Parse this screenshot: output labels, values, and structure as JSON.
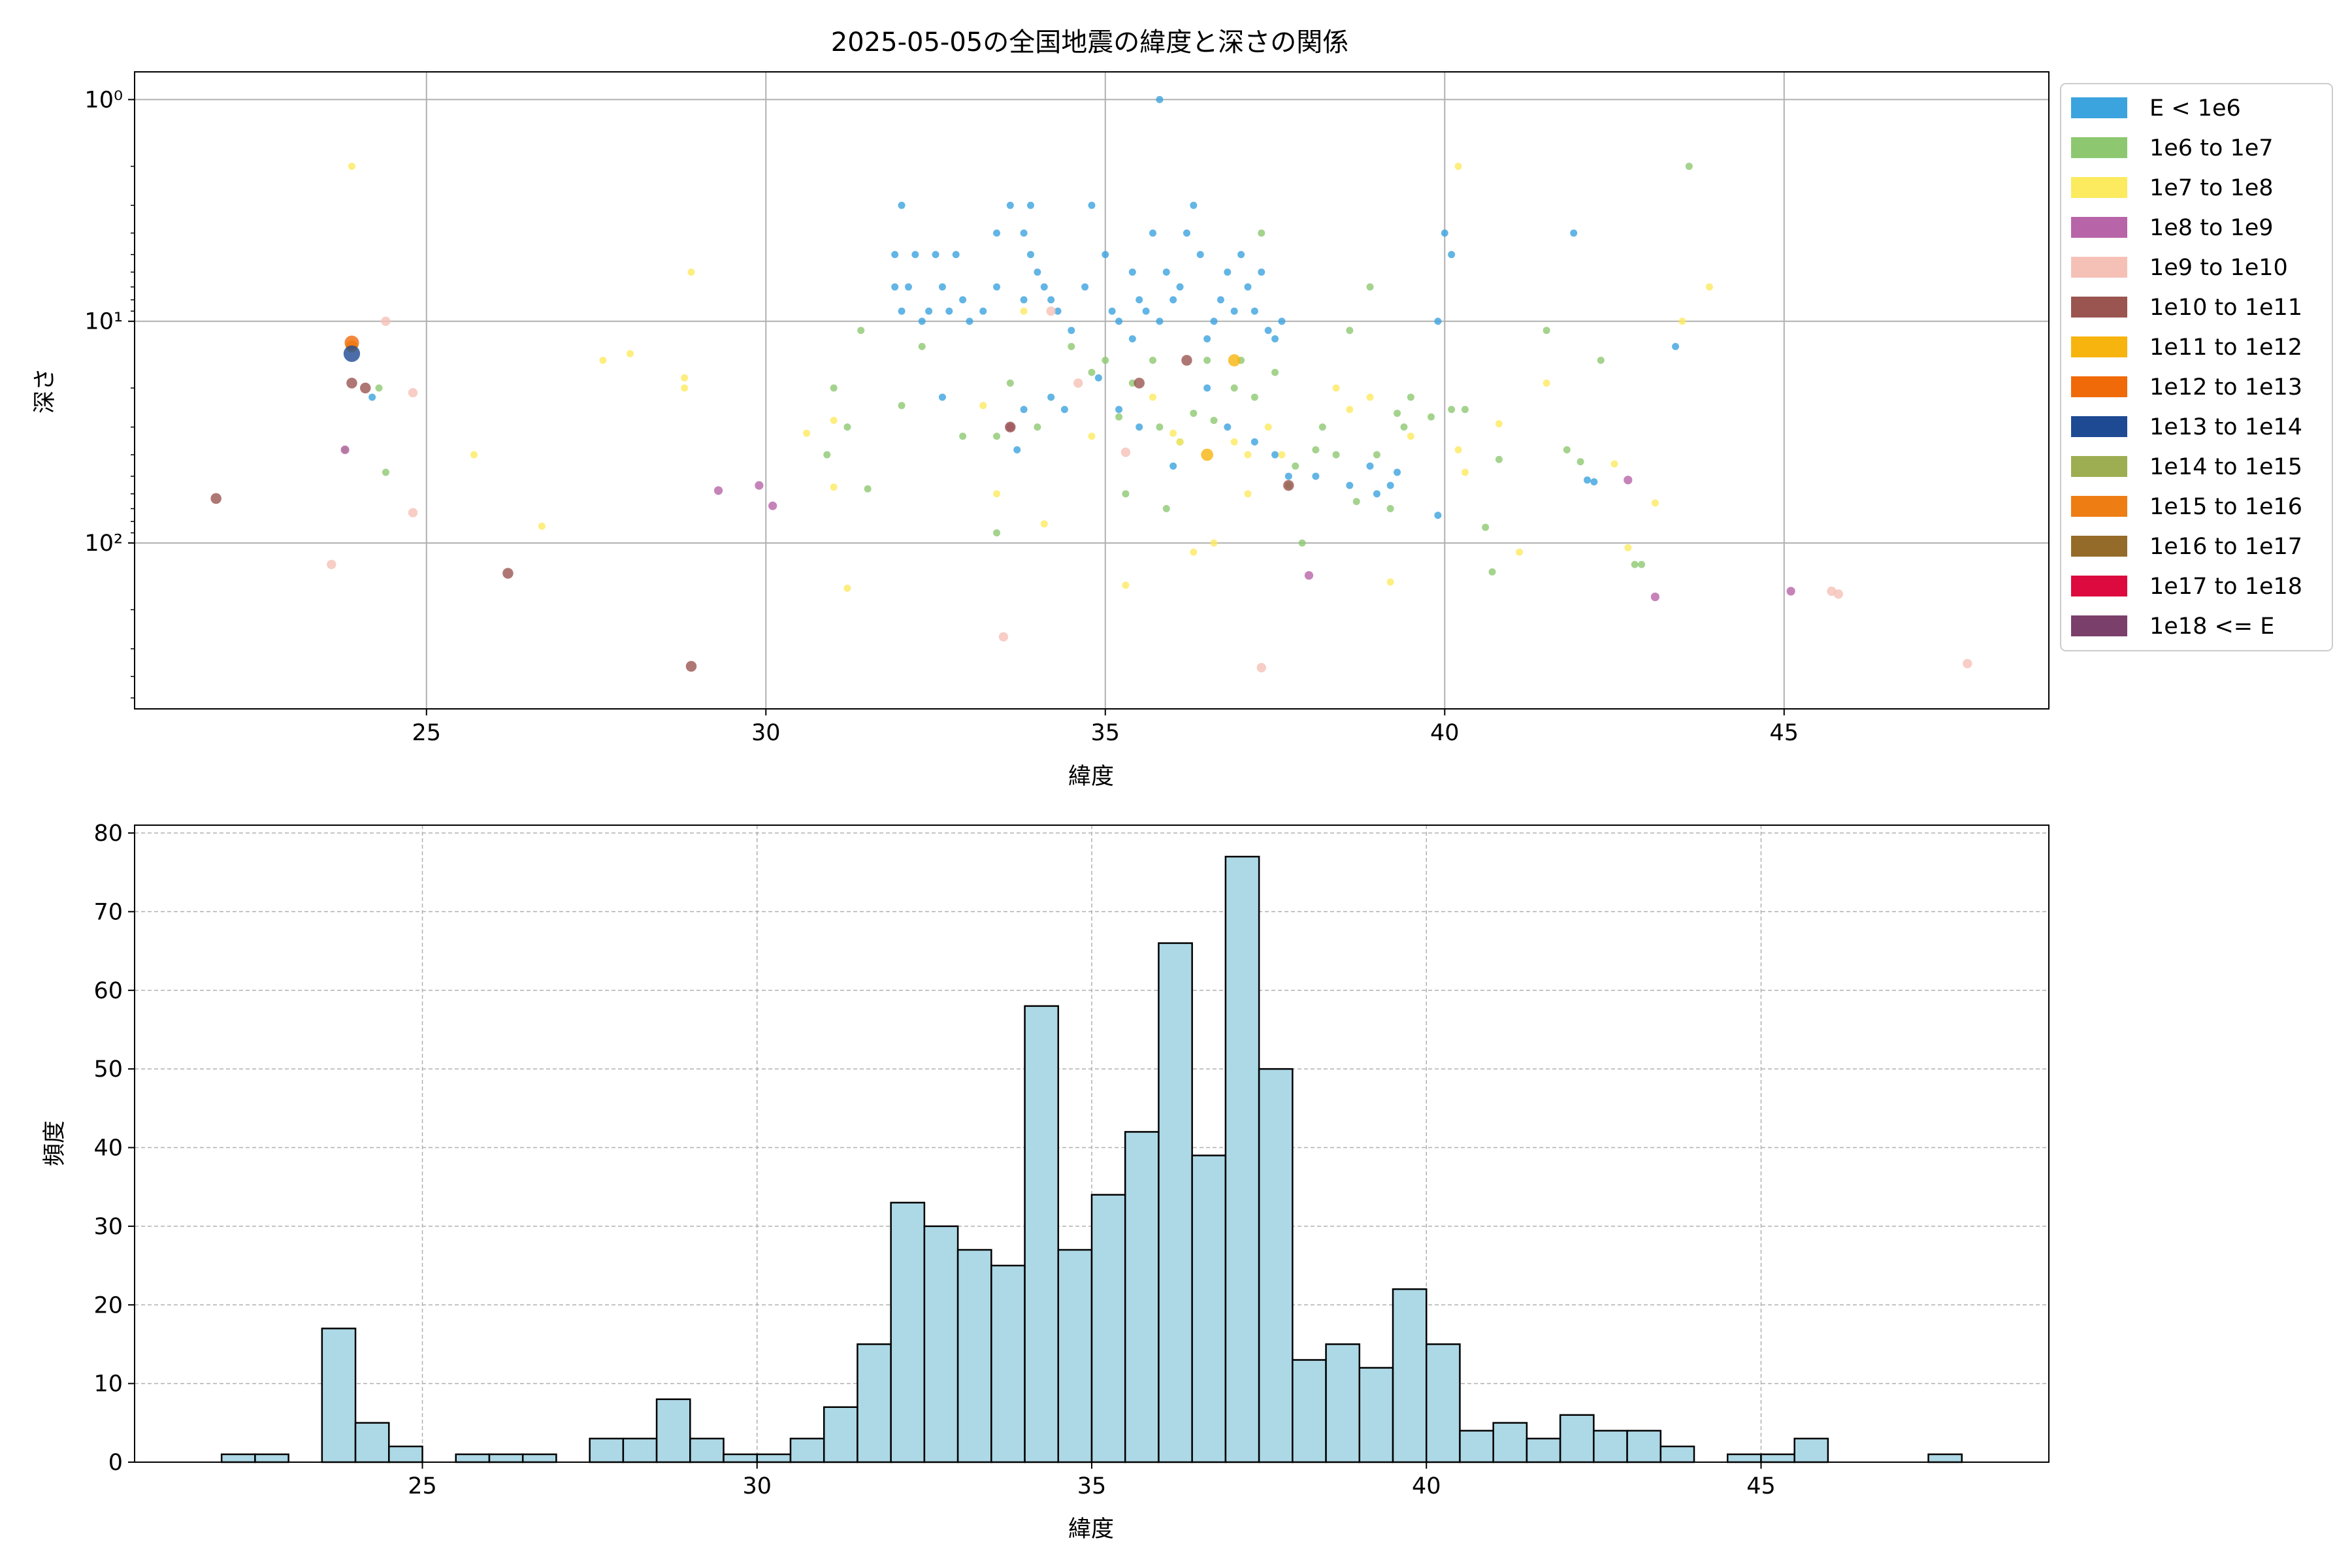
{
  "chart_data": [
    {
      "type": "scatter",
      "title": "2025-05-05の全国地震の緯度と深さの関係",
      "xlabel": "緯度",
      "ylabel": "深さ",
      "xlim": [
        20.7,
        48.9
      ],
      "ylim": [
        560,
        0.75
      ],
      "y_scale": "log",
      "y_inverted": true,
      "grid": true,
      "legend_placement": "outside-top-right",
      "x_ticks": [
        25,
        30,
        35,
        40,
        45
      ],
      "y_ticks": [
        {
          "value": 1,
          "label": "10⁰"
        },
        {
          "value": 10,
          "label": "10¹"
        },
        {
          "value": 100,
          "label": "10²"
        }
      ],
      "series": [
        {
          "name": "E < 1e6",
          "color": "#3ba3de",
          "size": 1.0,
          "points": [
            [
              24.2,
              22
            ],
            [
              31.9,
              5
            ],
            [
              31.9,
              7
            ],
            [
              32.0,
              3
            ],
            [
              32.0,
              9
            ],
            [
              32.1,
              7
            ],
            [
              32.2,
              5
            ],
            [
              32.3,
              10
            ],
            [
              32.4,
              9
            ],
            [
              32.5,
              5
            ],
            [
              32.6,
              7
            ],
            [
              32.7,
              9
            ],
            [
              32.8,
              5
            ],
            [
              32.9,
              8
            ],
            [
              33.0,
              10
            ],
            [
              33.2,
              9
            ],
            [
              33.4,
              4
            ],
            [
              33.4,
              7
            ],
            [
              33.6,
              3
            ],
            [
              33.8,
              4
            ],
            [
              33.8,
              8
            ],
            [
              33.9,
              5
            ],
            [
              33.9,
              3
            ],
            [
              34.0,
              6
            ],
            [
              34.1,
              7
            ],
            [
              34.2,
              8
            ],
            [
              34.3,
              9
            ],
            [
              34.5,
              11
            ],
            [
              34.7,
              7
            ],
            [
              34.8,
              3
            ],
            [
              35.0,
              5
            ],
            [
              35.1,
              9
            ],
            [
              35.2,
              10
            ],
            [
              35.4,
              6
            ],
            [
              35.4,
              12
            ],
            [
              35.5,
              8
            ],
            [
              35.6,
              9
            ],
            [
              35.7,
              4
            ],
            [
              35.8,
              10
            ],
            [
              35.9,
              6
            ],
            [
              36.0,
              8
            ],
            [
              36.1,
              7
            ],
            [
              36.2,
              4
            ],
            [
              36.3,
              3
            ],
            [
              36.4,
              5
            ],
            [
              36.5,
              12
            ],
            [
              36.6,
              10
            ],
            [
              36.7,
              8
            ],
            [
              36.8,
              6
            ],
            [
              36.9,
              9
            ],
            [
              37.0,
              5
            ],
            [
              37.1,
              7
            ],
            [
              37.2,
              9
            ],
            [
              37.3,
              6
            ],
            [
              37.4,
              11
            ],
            [
              37.5,
              12
            ],
            [
              37.6,
              10
            ],
            [
              37.5,
              40
            ],
            [
              37.7,
              50
            ],
            [
              38.1,
              50
            ],
            [
              38.6,
              55
            ],
            [
              38.9,
              45
            ],
            [
              39.0,
              60
            ],
            [
              39.2,
              55
            ],
            [
              39.3,
              48
            ],
            [
              39.9,
              10
            ],
            [
              40.0,
              4
            ],
            [
              40.1,
              5
            ],
            [
              41.9,
              4
            ],
            [
              42.1,
              52
            ],
            [
              42.2,
              53
            ],
            [
              43.4,
              13
            ],
            [
              35.8,
              1
            ],
            [
              36.0,
              45
            ],
            [
              36.8,
              30
            ],
            [
              37.2,
              35
            ],
            [
              33.7,
              38
            ],
            [
              34.2,
              22
            ],
            [
              35.5,
              30
            ],
            [
              39.9,
              75
            ],
            [
              34.4,
              25
            ],
            [
              33.8,
              25
            ],
            [
              32.6,
              22
            ],
            [
              34.9,
              18
            ],
            [
              36.5,
              20
            ],
            [
              35.2,
              25
            ]
          ]
        },
        {
          "name": "1e6 to 1e7",
          "color": "#8dc871",
          "size": 1.0,
          "points": [
            [
              23.8,
              38
            ],
            [
              24.3,
              20
            ],
            [
              24.4,
              48
            ],
            [
              30.9,
              40
            ],
            [
              31.0,
              20
            ],
            [
              31.2,
              30
            ],
            [
              31.4,
              11
            ],
            [
              31.5,
              57
            ],
            [
              32.0,
              24
            ],
            [
              32.3,
              13
            ],
            [
              32.9,
              33
            ],
            [
              33.4,
              33
            ],
            [
              33.4,
              90
            ],
            [
              33.6,
              19
            ],
            [
              34.0,
              30
            ],
            [
              34.5,
              13
            ],
            [
              34.8,
              17
            ],
            [
              35.0,
              15
            ],
            [
              35.2,
              27
            ],
            [
              35.3,
              60
            ],
            [
              35.4,
              19
            ],
            [
              35.7,
              15
            ],
            [
              35.8,
              30
            ],
            [
              35.9,
              70
            ],
            [
              36.1,
              35
            ],
            [
              36.3,
              26
            ],
            [
              36.5,
              15
            ],
            [
              36.6,
              28
            ],
            [
              36.9,
              20
            ],
            [
              37.0,
              15
            ],
            [
              37.2,
              22
            ],
            [
              37.3,
              4
            ],
            [
              37.5,
              17
            ],
            [
              37.7,
              55
            ],
            [
              37.8,
              45
            ],
            [
              37.9,
              100
            ],
            [
              38.1,
              38
            ],
            [
              38.2,
              30
            ],
            [
              38.4,
              40
            ],
            [
              38.6,
              11
            ],
            [
              38.7,
              65
            ],
            [
              38.9,
              7
            ],
            [
              39.0,
              40
            ],
            [
              39.2,
              70
            ],
            [
              39.3,
              26
            ],
            [
              39.4,
              30
            ],
            [
              39.5,
              22
            ],
            [
              39.8,
              27
            ],
            [
              40.1,
              25
            ],
            [
              40.3,
              25
            ],
            [
              40.6,
              85
            ],
            [
              40.7,
              135
            ],
            [
              40.8,
              42
            ],
            [
              41.5,
              11
            ],
            [
              41.8,
              38
            ],
            [
              42.0,
              43
            ],
            [
              42.3,
              15
            ],
            [
              42.8,
              125
            ],
            [
              42.9,
              125
            ],
            [
              43.6,
              2
            ]
          ]
        },
        {
          "name": "1e7 to 1e8",
          "color": "#fcea5f",
          "size": 1.0,
          "points": [
            [
              23.9,
              2
            ],
            [
              25.7,
              40
            ],
            [
              26.7,
              84
            ],
            [
              27.6,
              15
            ],
            [
              28.0,
              14
            ],
            [
              28.8,
              20
            ],
            [
              28.8,
              18
            ],
            [
              28.9,
              6
            ],
            [
              30.6,
              32
            ],
            [
              31.0,
              56
            ],
            [
              31.0,
              28
            ],
            [
              31.2,
              160
            ],
            [
              33.2,
              24
            ],
            [
              33.4,
              60
            ],
            [
              33.8,
              9
            ],
            [
              34.1,
              82
            ],
            [
              34.8,
              33
            ],
            [
              35.3,
              155
            ],
            [
              35.7,
              22
            ],
            [
              36.1,
              35
            ],
            [
              36.3,
              110
            ],
            [
              36.6,
              100
            ],
            [
              36.9,
              35
            ],
            [
              37.1,
              60
            ],
            [
              37.4,
              30
            ],
            [
              37.6,
              40
            ],
            [
              38.4,
              20
            ],
            [
              38.6,
              25
            ],
            [
              38.9,
              22
            ],
            [
              39.2,
              150
            ],
            [
              39.5,
              33
            ],
            [
              40.2,
              2
            ],
            [
              40.2,
              38
            ],
            [
              40.3,
              48
            ],
            [
              40.8,
              29
            ],
            [
              41.1,
              110
            ],
            [
              41.5,
              19
            ],
            [
              42.5,
              44
            ],
            [
              42.7,
              105
            ],
            [
              43.1,
              66
            ],
            [
              43.5,
              10
            ],
            [
              43.9,
              7
            ],
            [
              37.1,
              40
            ],
            [
              36.0,
              32
            ]
          ]
        },
        {
          "name": "1e8 to 1e9",
          "color": "#b864a8",
          "size": 1.2,
          "points": [
            [
              23.8,
              38
            ],
            [
              29.3,
              58
            ],
            [
              29.9,
              55
            ],
            [
              30.1,
              68
            ],
            [
              33.6,
              30
            ],
            [
              38.0,
              140
            ],
            [
              42.7,
              52
            ],
            [
              43.1,
              175
            ],
            [
              45.1,
              165
            ]
          ]
        },
        {
          "name": "1e9 to 1e10",
          "color": "#f5c1b6",
          "size": 1.3,
          "points": [
            [
              23.6,
              125
            ],
            [
              24.4,
              10
            ],
            [
              24.8,
              21
            ],
            [
              24.8,
              73
            ],
            [
              33.5,
              265
            ],
            [
              34.2,
              9
            ],
            [
              34.6,
              19
            ],
            [
              35.3,
              39
            ],
            [
              37.3,
              365
            ],
            [
              45.7,
              165
            ],
            [
              45.8,
              170
            ],
            [
              47.7,
              350
            ]
          ]
        },
        {
          "name": "1e10 to 1e11",
          "color": "#9a5550",
          "size": 1.5,
          "points": [
            [
              21.9,
              63
            ],
            [
              23.9,
              19
            ],
            [
              24.1,
              20
            ],
            [
              26.2,
              137
            ],
            [
              28.9,
              360
            ],
            [
              37.7,
              55
            ],
            [
              35.5,
              19
            ],
            [
              33.6,
              30
            ],
            [
              36.2,
              15
            ]
          ]
        },
        {
          "name": "1e11 to 1e12",
          "color": "#f7b40e",
          "size": 1.7,
          "points": [
            [
              23.9,
              13
            ],
            [
              36.9,
              15
            ],
            [
              36.5,
              40
            ]
          ]
        },
        {
          "name": "1e12 to 1e13",
          "color": "#f06a0a",
          "size": 2.0,
          "points": [
            [
              23.9,
              12.5
            ]
          ]
        },
        {
          "name": "1e13 to 1e14",
          "color": "#1e4a93",
          "size": 2.3,
          "points": [
            [
              23.9,
              14
            ]
          ]
        },
        {
          "name": "1e14 to 1e15",
          "color": "#9dad51",
          "size": 2.5,
          "points": []
        },
        {
          "name": "1e15 to 1e16",
          "color": "#ee7d13",
          "size": 2.7,
          "points": []
        },
        {
          "name": "1e16 to 1e17",
          "color": "#956b29",
          "size": 2.9,
          "points": []
        },
        {
          "name": "1e17 to 1e18",
          "color": "#dc0a3e",
          "size": 3.1,
          "points": []
        },
        {
          "name": "1e18 <= E",
          "color": "#7b3f6b",
          "size": 3.3,
          "points": []
        }
      ]
    },
    {
      "type": "bar",
      "title": "",
      "xlabel": "緯度",
      "ylabel": "頻度",
      "xlim": [
        20.7,
        49.3
      ],
      "ylim": [
        0,
        81
      ],
      "grid": true,
      "color": "#add8e6",
      "x_ticks": [
        25,
        30,
        35,
        40,
        45
      ],
      "y_ticks": [
        0,
        10,
        20,
        30,
        40,
        50,
        60,
        70,
        80
      ],
      "bin_edges_start": 22.0,
      "bin_width": 0.5,
      "values": [
        1,
        1,
        0,
        17,
        5,
        2,
        0,
        1,
        1,
        1,
        0,
        3,
        3,
        8,
        3,
        1,
        1,
        3,
        7,
        15,
        33,
        30,
        27,
        25,
        58,
        27,
        34,
        42,
        66,
        39,
        77,
        50,
        13,
        15,
        12,
        22,
        15,
        4,
        5,
        3,
        6,
        4,
        4,
        2,
        0,
        1,
        1,
        3,
        0,
        0,
        0,
        1
      ]
    }
  ]
}
